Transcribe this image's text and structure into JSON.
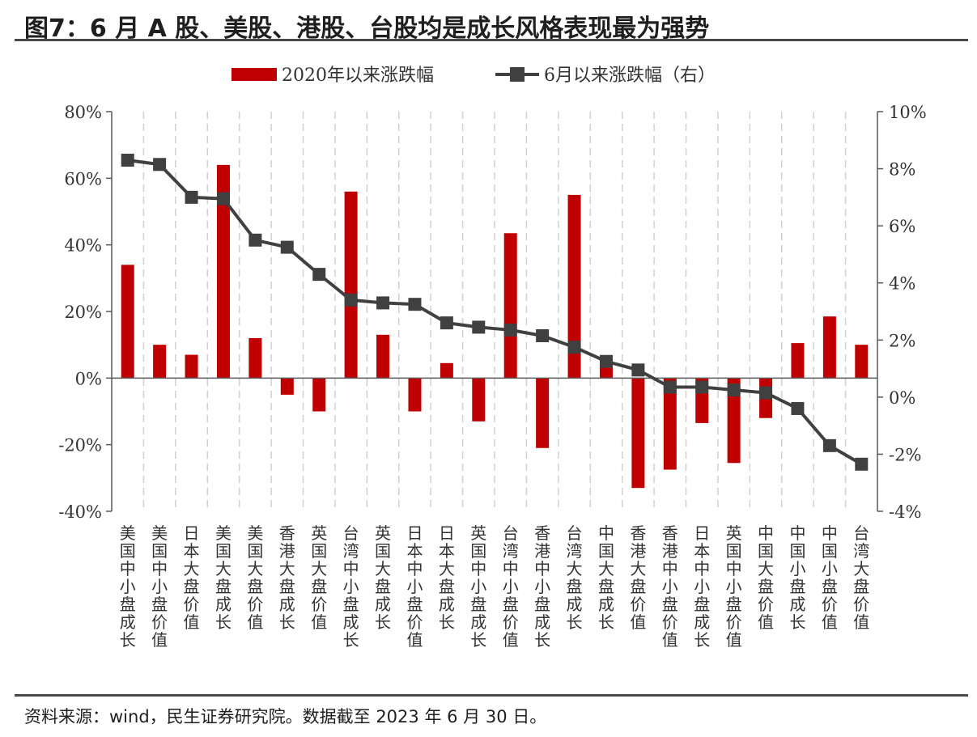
{
  "title": "图7：6 月 A 股、美股、港股、台股均是成长风格表现最为强势",
  "source": "资料来源：wind，民生证券研究院。数据截至 2023 年 6 月 30 日。",
  "colors": {
    "bar": "#c00000",
    "line": "#404040",
    "grid": "#d0d0d0",
    "axis": "#595959"
  },
  "chart_data": {
    "type": "bar+line",
    "categories": [
      "美国中小盘成长",
      "美国中小盘价值",
      "日本大盘价值",
      "美国大盘成长",
      "美国大盘价值",
      "香港大盘成长",
      "英国大盘价值",
      "台湾中小盘成长",
      "英国大盘成长",
      "日本中小盘价值",
      "日本大盘成长",
      "英国中小盘成长",
      "台湾中小盘价值",
      "香港中小盘成长",
      "台湾大盘成长",
      "中国大盘成长",
      "香港大盘价值",
      "香港中小盘价值",
      "日本中小盘成长",
      "英国中小盘价值",
      "中国大盘价值",
      "中国小盘成长",
      "中国小盘价值",
      "台湾大盘价值"
    ],
    "series": [
      {
        "name": "2020年以来涨跌幅",
        "type": "bar",
        "axis": "left",
        "values": [
          34,
          10,
          7,
          64,
          12,
          -5,
          -10,
          56,
          13,
          -10,
          4.5,
          -13,
          43.5,
          -21,
          55,
          4,
          -33,
          -27.5,
          -13.5,
          -25.5,
          -12,
          10.5,
          18.5,
          10
        ]
      },
      {
        "name": "6月以来涨跌幅（右）",
        "type": "line",
        "axis": "right",
        "values": [
          8.3,
          8.15,
          7.0,
          6.95,
          5.5,
          5.25,
          4.3,
          3.4,
          3.3,
          3.25,
          2.6,
          2.45,
          2.35,
          2.15,
          1.75,
          1.25,
          0.95,
          0.35,
          0.35,
          0.25,
          0.15,
          -0.4,
          -1.7,
          -2.35
        ]
      }
    ],
    "left_axis": {
      "ylim": [
        -40,
        80
      ],
      "ticks": [
        "80%",
        "60%",
        "40%",
        "20%",
        "0%",
        "-20%",
        "-40%"
      ]
    },
    "right_axis": {
      "ylim": [
        -4,
        10
      ],
      "ticks": [
        "10%",
        "8%",
        "6%",
        "4%",
        "2%",
        "0%",
        "-2%",
        "-4%"
      ]
    },
    "legend_position": "top-center",
    "grid": "vertical-dashed"
  }
}
